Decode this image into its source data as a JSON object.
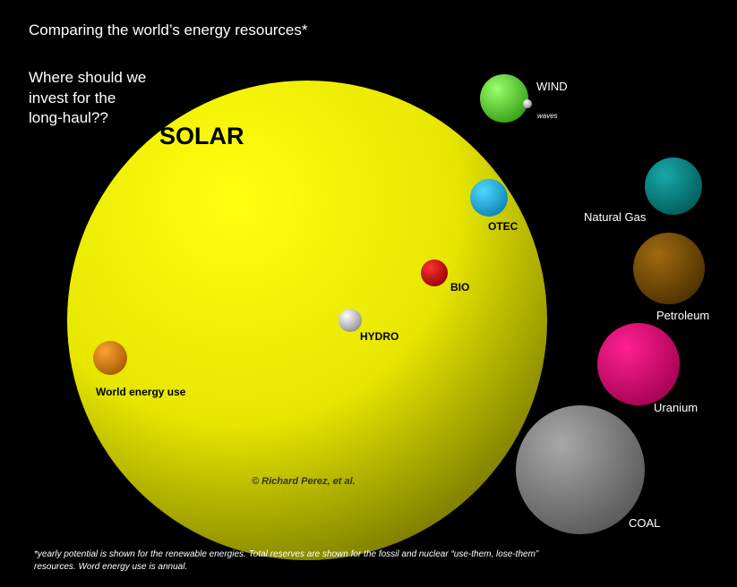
{
  "header": {
    "title": "Comparing the world’s energy resources*",
    "question": [
      "Where should we",
      "invest for the",
      "long-haul??"
    ]
  },
  "nodes": [
    {
      "label": "SOLAR"
    },
    {
      "label": "WIND"
    },
    {
      "label": "waves"
    },
    {
      "label": "OTEC"
    },
    {
      "label": "BIO"
    },
    {
      "label": "HYDRO"
    },
    {
      "label": "World energy use"
    },
    {
      "label": "Natural Gas"
    },
    {
      "label": "Petroleum"
    },
    {
      "label": "Uranium"
    },
    {
      "label": "COAL"
    }
  ],
  "credit": "© Richard Perez, et al.",
  "footnote": [
    "*yearly potential is shown for the renewable energies. Total reserves are shown for the fossil and nuclear “use-them, lose-them”",
    "resources. Word energy use is annual."
  ]
}
